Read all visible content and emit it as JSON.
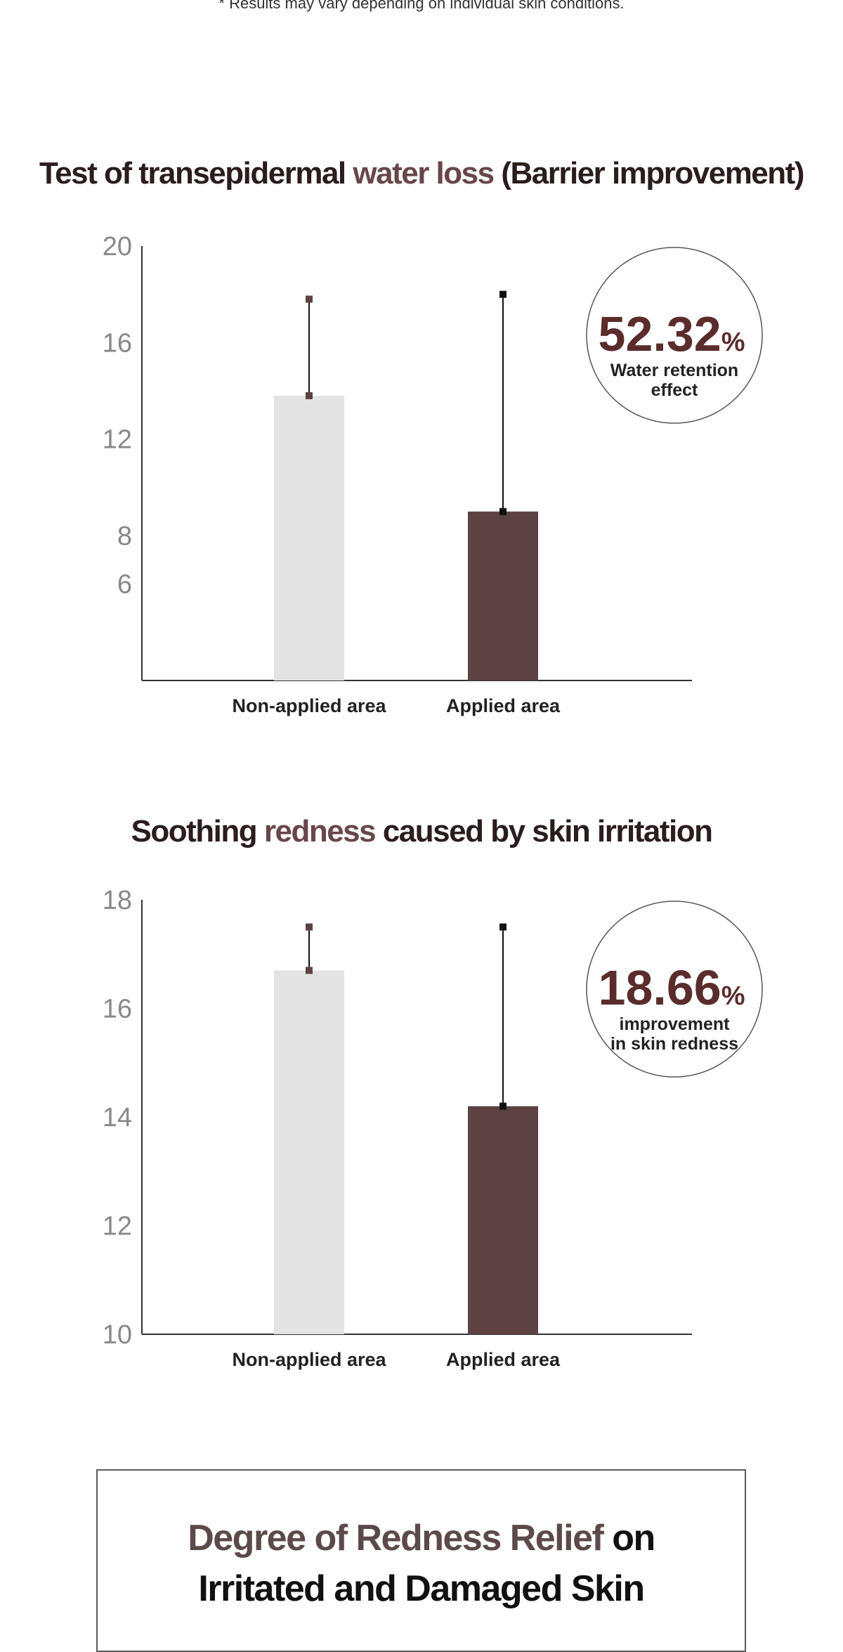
{
  "note": "* Results may vary depending on individual skin conditions.",
  "colors": {
    "non_applied": "#e3e3e3",
    "applied": "#5c4242",
    "accent": "#684649",
    "badge_number": "#5a2c2c"
  },
  "chart_data": [
    {
      "type": "bar",
      "title_parts": [
        "Test of transepidermal ",
        "water loss",
        " (Barrier improvement)"
      ],
      "categories": [
        "Non-applied area",
        "Applied area"
      ],
      "values": [
        13.8,
        9.0
      ],
      "error_upper": [
        17.8,
        18.0
      ],
      "yticks": [
        6,
        8,
        12,
        16,
        20
      ],
      "ylim": [
        2,
        20
      ],
      "badge": {
        "value": "52.32",
        "unit": "%",
        "caption": [
          "Water retention",
          "effect"
        ]
      }
    },
    {
      "type": "bar",
      "title_parts": [
        "Soothing ",
        "redness",
        " caused by skin irritation"
      ],
      "categories": [
        "Non-applied area",
        "Applied area"
      ],
      "values": [
        16.7,
        14.2
      ],
      "error_upper": [
        17.5,
        17.5
      ],
      "yticks": [
        10,
        12,
        14,
        16,
        18
      ],
      "ylim": [
        10,
        18
      ],
      "badge": {
        "value": "18.66",
        "unit": "%",
        "caption": [
          "improvement",
          "in skin redness"
        ]
      }
    }
  ],
  "bottom_box": {
    "title_accent": "Degree of Redness Relief",
    "title_rest": " on",
    "title_line2": "Irritated and Damaged Skin"
  }
}
